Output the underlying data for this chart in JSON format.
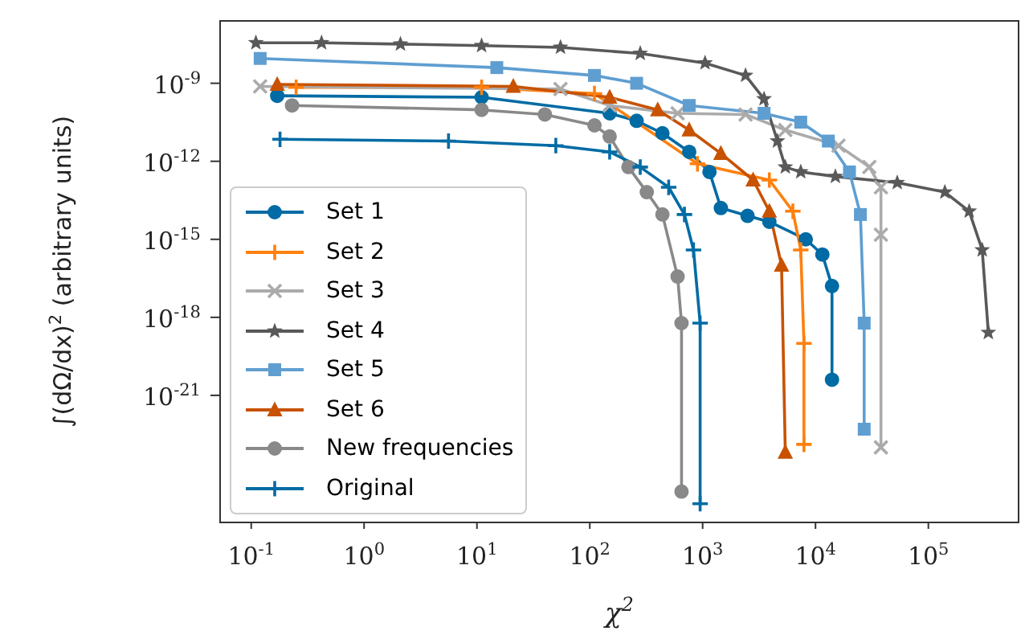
{
  "chart_data": {
    "type": "line",
    "xlabel": "χ$^{2}$",
    "ylabel": "∫(dΩ/dx)$^{2}$ (arbitrary units)",
    "log": "xy",
    "grid": false,
    "legend": "bottom left",
    "xlim": [
      0.053,
      630000
    ],
    "ylim": [
      1.3e-26,
      2.5e-07
    ],
    "xticks": [
      {
        "value": 0.1,
        "label": "10$^{-1}$"
      },
      {
        "value": 1,
        "label": "10$^{0}$"
      },
      {
        "value": 10,
        "label": "10$^{1}$"
      },
      {
        "value": 100,
        "label": "10$^{2}$"
      },
      {
        "value": 1000,
        "label": "10$^{3}$"
      },
      {
        "value": 10000,
        "label": "10$^{4}$"
      },
      {
        "value": 100000,
        "label": "10$^{5}$"
      }
    ],
    "yticks": [
      {
        "value": 1e-21,
        "label": "10$^{-21}$"
      },
      {
        "value": 1e-18,
        "label": "10$^{-18}$"
      },
      {
        "value": 1e-15,
        "label": "10$^{-15}$"
      },
      {
        "value": 1e-12,
        "label": "10$^{-12}$"
      },
      {
        "value": 1e-09,
        "label": "10$^{-9}$"
      }
    ],
    "series": [
      {
        "name": "Set 1",
        "color": "#006ba4",
        "marker": "circle",
        "x": [
          0.17,
          11,
          150,
          260,
          440,
          760,
          1150,
          1450,
          2500,
          3900,
          8200,
          11500,
          14000,
          14000
        ],
        "values": [
          3.3e-10,
          2.9e-10,
          7e-11,
          3.6e-11,
          1.2e-11,
          2.3e-12,
          3.9e-13,
          1.6e-14,
          8e-15,
          4.7e-15,
          1e-15,
          2.6e-16,
          1.6e-17,
          4e-21
        ]
      },
      {
        "name": "Set 2",
        "color": "#ff800e",
        "marker": "cross",
        "x": [
          0.25,
          11,
          110,
          900,
          3900,
          6300,
          7400,
          7900,
          7900
        ],
        "values": [
          7e-10,
          7e-10,
          4e-10,
          8e-13,
          1.9e-13,
          1.2e-14,
          3.9e-16,
          1e-19,
          1.3e-23
        ]
      },
      {
        "name": "Set 3",
        "color": "#ababab",
        "marker": "x",
        "x": [
          0.12,
          55,
          150,
          600,
          2400,
          5400,
          16000,
          30000,
          38000,
          38000,
          38000
        ],
        "values": [
          7.6e-10,
          6e-10,
          1.4e-10,
          7e-11,
          6.3e-11,
          1.6e-11,
          4e-12,
          6e-13,
          1e-13,
          1.5e-15,
          1e-23
        ]
      },
      {
        "name": "Set 4",
        "color": "#595959",
        "marker": "star",
        "x": [
          0.11,
          0.42,
          2.1,
          11,
          55,
          280,
          1050,
          2400,
          3500,
          4600,
          5400,
          7400,
          15000,
          53000,
          140000,
          230000,
          300000,
          340000
        ],
        "values": [
          3.6e-08,
          3.6e-08,
          3.2e-08,
          2.8e-08,
          2.4e-08,
          1.4e-08,
          6e-09,
          2e-09,
          2.5e-10,
          6e-12,
          6e-13,
          3.9e-13,
          2.6e-13,
          1.5e-13,
          6.5e-14,
          1.2e-14,
          3.9e-16,
          2.6e-19
        ]
      },
      {
        "name": "Set 5",
        "color": "#5f9ed1",
        "marker": "square",
        "x": [
          0.12,
          15,
          110,
          260,
          760,
          3500,
          7400,
          13000,
          20000,
          25000,
          27000,
          27000
        ],
        "values": [
          9e-09,
          4e-09,
          2e-09,
          1e-09,
          1.4e-10,
          7e-11,
          3.2e-11,
          6e-12,
          3.9e-13,
          9e-15,
          6e-19,
          5e-23
        ]
      },
      {
        "name": "Set 6",
        "color": "#c85200",
        "marker": "triangle",
        "x": [
          0.17,
          21,
          150,
          400,
          760,
          1450,
          2800,
          3900,
          5000,
          5400
        ],
        "values": [
          9e-10,
          7.6e-10,
          2.9e-10,
          9.5e-11,
          1.6e-11,
          2e-12,
          1.9e-13,
          1.2e-14,
          1e-16,
          6.5e-24
        ]
      },
      {
        "name": "New frequencies",
        "color": "#898989",
        "marker": "circle",
        "x": [
          0.23,
          11,
          40,
          110,
          150,
          220,
          320,
          440,
          600,
          650,
          650
        ],
        "values": [
          1.4e-10,
          9.5e-11,
          6.3e-11,
          2.4e-11,
          9e-12,
          6e-13,
          6.5e-14,
          9e-15,
          3.7e-17,
          6e-19,
          2e-25
        ]
      },
      {
        "name": "Original",
        "color": "#006ba4",
        "marker": "cross",
        "x": [
          0.18,
          5.6,
          50,
          150,
          280,
          500,
          690,
          830,
          950,
          950
        ],
        "values": [
          7e-12,
          6e-12,
          4e-12,
          2.3e-12,
          6e-13,
          1e-13,
          9e-15,
          3.9e-16,
          6e-19,
          6.8e-26
        ]
      }
    ]
  }
}
